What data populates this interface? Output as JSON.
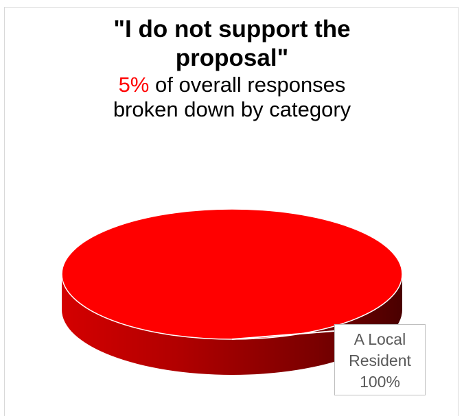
{
  "chart_data": {
    "type": "pie",
    "title": "\"I do not support the proposal\"",
    "subtitle_highlight": "5%",
    "subtitle_rest_1": "of overall responses",
    "subtitle_rest_2": "broken down by category",
    "categories": [
      "A Local Resident"
    ],
    "values": [
      100
    ],
    "data_labels": [
      {
        "category": "A Local Resident",
        "percent": "100%"
      }
    ],
    "colors": {
      "slice": "#ff0000",
      "side_dark": "#5c0000",
      "side_mid": "#c00000",
      "highlight": "#ff0000"
    },
    "legend": "none",
    "style": "3d"
  },
  "title_lines": [
    "\"I do not support the",
    "proposal\""
  ],
  "label_lines": [
    "A Local",
    "Resident"
  ]
}
